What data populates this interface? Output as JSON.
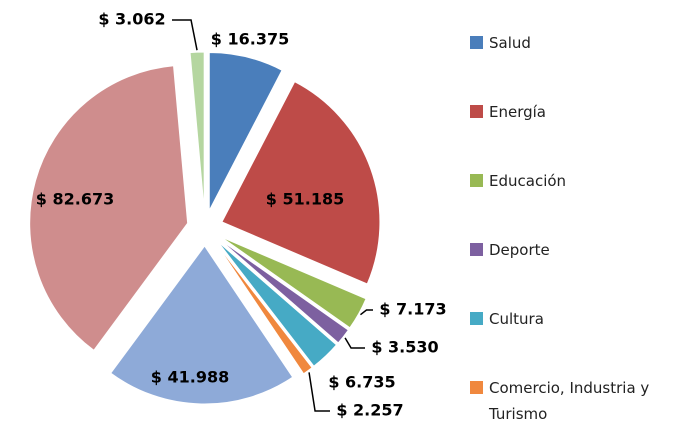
{
  "chart_data": {
    "type": "pie",
    "categories": [
      "Salud",
      "Energía",
      "Educación",
      "Deporte",
      "Cultura",
      "Comercio, Industria y Turismo",
      null,
      null,
      null
    ],
    "values": [
      16375,
      51185,
      7173,
      3530,
      6735,
      2257,
      41988,
      82673,
      3062
    ],
    "value_labels": [
      "$ 16.375",
      "$ 51.185",
      "$ 7.173",
      "$ 3.530",
      "$ 6.735",
      "$ 2.257",
      "$ 41.988",
      "$ 82.673",
      "$ 3.062"
    ],
    "colors": [
      "#4a7ebb",
      "#be4b48",
      "#98b954",
      "#7d60a0",
      "#46aac5",
      "#f0883e",
      "#8eaad8",
      "#cf8d8d",
      "#b5d6a0"
    ],
    "legend": "right"
  }
}
